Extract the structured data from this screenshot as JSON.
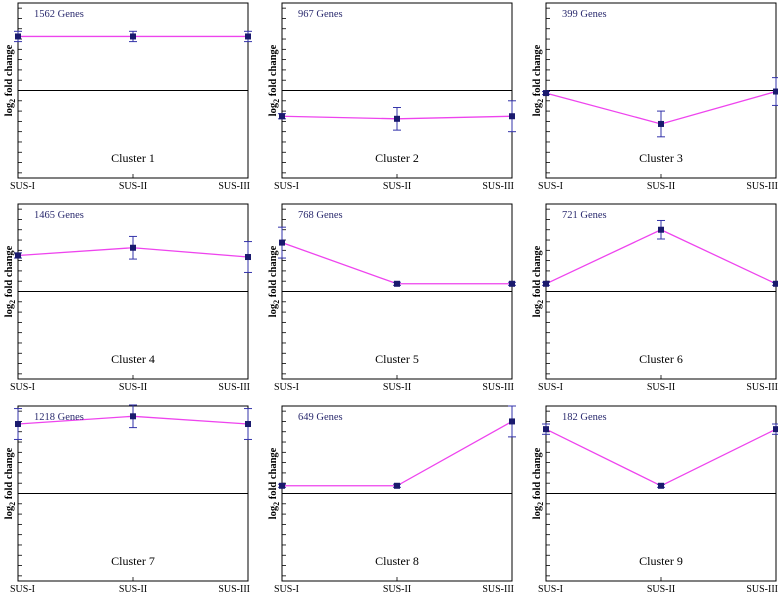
{
  "chart_data": [
    {
      "type": "line",
      "annotation": "1562 Genes",
      "title": "Cluster 1",
      "ylabel": "log2 fold change",
      "categories": [
        "SUS-I",
        "SUS-II",
        "SUS-III"
      ],
      "values": [
        1.05,
        1.05,
        1.05
      ],
      "errors": [
        0.1,
        0.1,
        0.1
      ],
      "ylim": [
        -1.7,
        1.7
      ],
      "grid": false
    },
    {
      "type": "line",
      "annotation": "967 Genes",
      "title": "Cluster 2",
      "ylabel": "log2 fold change",
      "categories": [
        "SUS-I",
        "SUS-II",
        "SUS-III"
      ],
      "values": [
        -0.5,
        -0.55,
        -0.5
      ],
      "errors": [
        0.05,
        0.22,
        0.3
      ],
      "ylim": [
        -1.7,
        1.7
      ],
      "grid": false
    },
    {
      "type": "line",
      "annotation": "399 Genes",
      "title": "Cluster 3",
      "ylabel": "log2 fold change",
      "categories": [
        "SUS-I",
        "SUS-II",
        "SUS-III"
      ],
      "values": [
        -0.05,
        -0.65,
        -0.02
      ],
      "errors": [
        0.03,
        0.25,
        0.27
      ],
      "ylim": [
        -1.7,
        1.7
      ],
      "grid": false
    },
    {
      "type": "line",
      "annotation": "1465 Genes",
      "title": "Cluster 4",
      "ylabel": "log2 fold change",
      "categories": [
        "SUS-I",
        "SUS-II",
        "SUS-III"
      ],
      "values": [
        0.7,
        0.85,
        0.67
      ],
      "errors": [
        0.05,
        0.22,
        0.3
      ],
      "ylim": [
        -1.7,
        1.7
      ],
      "grid": false
    },
    {
      "type": "line",
      "annotation": "768 Genes",
      "title": "Cluster 5",
      "ylabel": "log2 fold change",
      "categories": [
        "SUS-I",
        "SUS-II",
        "SUS-III"
      ],
      "values": [
        0.95,
        0.15,
        0.15
      ],
      "errors": [
        0.3,
        0.03,
        0.03
      ],
      "ylim": [
        -1.7,
        1.7
      ],
      "grid": false
    },
    {
      "type": "line",
      "annotation": "721 Genes",
      "title": "Cluster 6",
      "ylabel": "log2 fold change",
      "categories": [
        "SUS-I",
        "SUS-II",
        "SUS-III"
      ],
      "values": [
        0.15,
        1.2,
        0.15
      ],
      "errors": [
        0.03,
        0.18,
        0.03
      ],
      "ylim": [
        -1.7,
        1.7
      ],
      "grid": false
    },
    {
      "type": "line",
      "annotation": "1218 Genes",
      "title": "Cluster 7",
      "ylabel": "log2 fold change",
      "categories": [
        "SUS-I",
        "SUS-II",
        "SUS-III"
      ],
      "values": [
        1.35,
        1.5,
        1.35
      ],
      "errors": [
        0.3,
        0.22,
        0.3
      ],
      "ylim": [
        -1.7,
        1.7
      ],
      "grid": false
    },
    {
      "type": "line",
      "annotation": "649 Genes",
      "title": "Cluster 8",
      "ylabel": "log2 fold change",
      "categories": [
        "SUS-I",
        "SUS-II",
        "SUS-III"
      ],
      "values": [
        0.15,
        0.15,
        1.4
      ],
      "errors": [
        0.03,
        0.03,
        0.3
      ],
      "ylim": [
        -1.7,
        1.7
      ],
      "grid": false
    },
    {
      "type": "line",
      "annotation": "182 Genes",
      "title": "Cluster 9",
      "ylabel": "log2 fold change",
      "categories": [
        "SUS-I",
        "SUS-II",
        "SUS-III"
      ],
      "values": [
        1.25,
        0.15,
        1.25
      ],
      "errors": [
        0.1,
        0.03,
        0.1
      ],
      "ylim": [
        -1.7,
        1.7
      ],
      "grid": false
    }
  ],
  "colors": {
    "line": "#ee44ee",
    "marker": "#1a1a6e",
    "error_bar": "#3333aa",
    "axis": "#000000",
    "annotation": "#2a2a6e"
  }
}
